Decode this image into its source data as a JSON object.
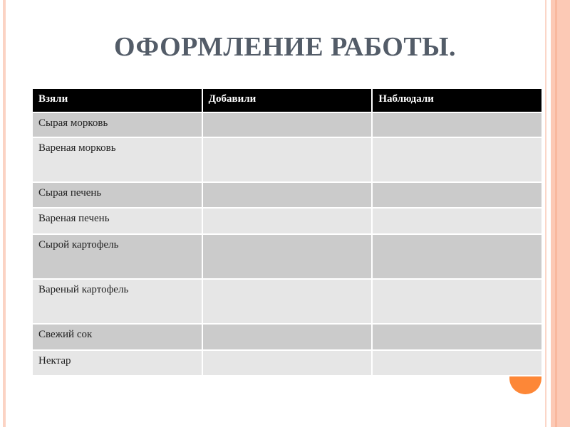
{
  "title": "ОФОРМЛЕНИЕ РАБОТЫ.",
  "colors": {
    "accent": "#fd8737",
    "header_bg": "#000000",
    "band": "#fcc9b5"
  },
  "table": {
    "headers": [
      "Взяли",
      "Добавили",
      "Наблюдали"
    ],
    "rows": [
      [
        "Сырая морковь",
        "",
        ""
      ],
      [
        "Вареная морковь",
        "",
        ""
      ],
      [
        "Сырая печень",
        "",
        ""
      ],
      [
        "Вареная печень",
        "",
        ""
      ],
      [
        "Сырой картофель",
        "",
        ""
      ],
      [
        "Вареный картофель",
        "",
        ""
      ],
      [
        "Свежий сок",
        "",
        ""
      ],
      [
        "Нектар",
        "",
        ""
      ]
    ]
  }
}
